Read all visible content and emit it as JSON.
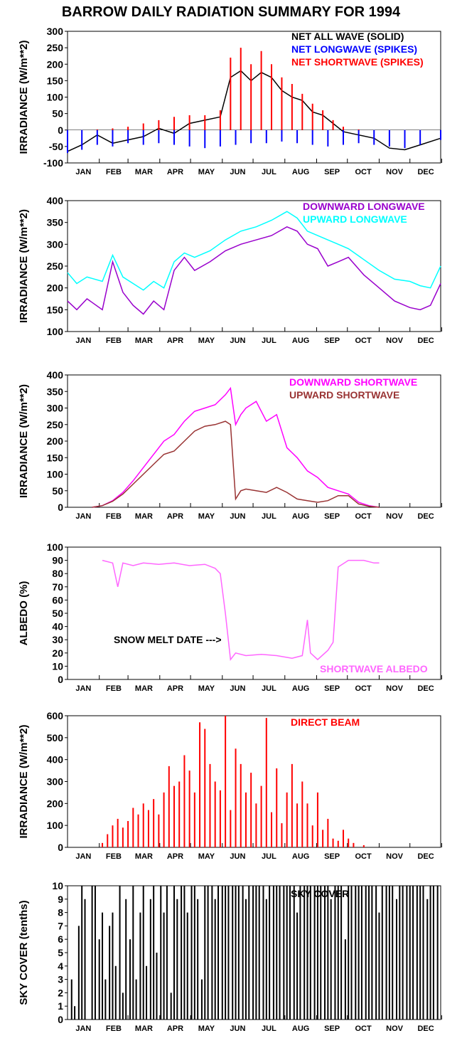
{
  "figure_title": "BARROW DAILY RADIATION SUMMARY FOR 1994",
  "months": [
    "JAN",
    "FEB",
    "MAR",
    "APR",
    "MAY",
    "JUN",
    "JUL",
    "AUG",
    "SEP",
    "OCT",
    "NOV",
    "DEC"
  ],
  "chart_data": [
    {
      "id": "net",
      "type": "bar",
      "ylabel": "IRRADIANCE (W/m**2)",
      "ylim": [
        -100,
        300
      ],
      "yticks": [
        -100,
        -50,
        0,
        50,
        100,
        150,
        200,
        250,
        300
      ],
      "series": [
        {
          "name": "NET ALL WAVE (SOLID)",
          "color": "#000000",
          "kind": "line",
          "x": [
            1,
            15,
            30,
            45,
            60,
            75,
            90,
            105,
            120,
            135,
            150,
            160,
            170,
            180,
            190,
            200,
            210,
            220,
            230,
            240,
            250,
            260,
            270,
            285,
            300,
            315,
            330,
            345,
            365
          ],
          "values": [
            -65,
            -45,
            -15,
            -40,
            -30,
            -20,
            5,
            -10,
            20,
            30,
            40,
            160,
            180,
            150,
            175,
            160,
            120,
            100,
            90,
            55,
            45,
            20,
            -5,
            -15,
            -25,
            -55,
            -60,
            -45,
            -25
          ]
        },
        {
          "name": "NET LONGWAVE (SPIKES)",
          "color": "#0000ff",
          "kind": "spikes",
          "x": [
            1,
            15,
            30,
            45,
            60,
            75,
            90,
            105,
            120,
            135,
            150,
            165,
            180,
            195,
            210,
            225,
            240,
            255,
            270,
            285,
            300,
            315,
            330,
            345,
            365
          ],
          "values": [
            -70,
            -60,
            -45,
            -50,
            -40,
            -45,
            -40,
            -45,
            -50,
            -55,
            -50,
            -45,
            -40,
            -40,
            -35,
            -40,
            -45,
            -50,
            -45,
            -40,
            -45,
            -50,
            -55,
            -45,
            -30
          ]
        },
        {
          "name": "NET SHORTWAVE (SPIKES)",
          "color": "#ff0000",
          "kind": "spikes",
          "x": [
            1,
            15,
            30,
            45,
            60,
            75,
            90,
            105,
            120,
            135,
            150,
            160,
            170,
            180,
            190,
            200,
            210,
            220,
            230,
            240,
            250,
            260,
            270,
            285,
            300,
            315,
            330,
            365
          ],
          "values": [
            0,
            0,
            2,
            5,
            10,
            20,
            30,
            40,
            45,
            45,
            60,
            220,
            250,
            200,
            240,
            200,
            160,
            140,
            110,
            80,
            60,
            30,
            10,
            2,
            0,
            0,
            0,
            0
          ]
        }
      ]
    },
    {
      "id": "longwave",
      "type": "line",
      "ylabel": "IRRADIANCE  (W/m**2)",
      "ylim": [
        100,
        400
      ],
      "yticks": [
        100,
        150,
        200,
        250,
        300,
        350,
        400
      ],
      "series": [
        {
          "name": "DOWNWARD LONGWAVE",
          "color": "#9900cc",
          "x": [
            1,
            10,
            20,
            35,
            45,
            55,
            65,
            75,
            85,
            95,
            105,
            115,
            125,
            140,
            155,
            170,
            185,
            200,
            215,
            225,
            235,
            245,
            255,
            265,
            275,
            290,
            305,
            320,
            335,
            345,
            355,
            365
          ],
          "values": [
            170,
            150,
            175,
            150,
            260,
            190,
            160,
            140,
            170,
            150,
            240,
            270,
            240,
            260,
            285,
            300,
            310,
            320,
            340,
            330,
            300,
            290,
            250,
            260,
            270,
            230,
            200,
            170,
            155,
            150,
            160,
            210
          ]
        },
        {
          "name": "UPWARD LONGWAVE",
          "color": "#00ffff",
          "x": [
            1,
            10,
            20,
            35,
            45,
            55,
            65,
            75,
            85,
            95,
            105,
            115,
            125,
            140,
            155,
            170,
            185,
            200,
            215,
            225,
            235,
            245,
            255,
            265,
            275,
            290,
            305,
            320,
            335,
            345,
            355,
            365
          ],
          "values": [
            235,
            210,
            225,
            215,
            275,
            225,
            210,
            195,
            215,
            200,
            260,
            280,
            270,
            285,
            310,
            330,
            340,
            355,
            375,
            360,
            330,
            320,
            310,
            300,
            290,
            265,
            240,
            220,
            215,
            205,
            200,
            250
          ]
        }
      ]
    },
    {
      "id": "shortwave",
      "type": "line",
      "ylabel": "IRRADIANCE (W/m**2)",
      "ylim": [
        0,
        400
      ],
      "yticks": [
        0,
        50,
        100,
        150,
        200,
        250,
        300,
        350,
        400
      ],
      "series": [
        {
          "name": "DOWNWARD SHORTWAVE",
          "color": "#ff00ff",
          "x": [
            25,
            35,
            45,
            55,
            65,
            75,
            85,
            95,
            105,
            115,
            125,
            135,
            145,
            155,
            160,
            165,
            170,
            175,
            185,
            195,
            205,
            215,
            225,
            235,
            245,
            255,
            265,
            275,
            285,
            295,
            305
          ],
          "values": [
            0,
            5,
            20,
            45,
            80,
            120,
            160,
            200,
            220,
            260,
            290,
            300,
            310,
            340,
            360,
            250,
            280,
            300,
            320,
            260,
            280,
            180,
            150,
            110,
            90,
            60,
            50,
            40,
            15,
            5,
            0
          ]
        },
        {
          "name": "UPWARD SHORTWAVE",
          "color": "#993333",
          "x": [
            25,
            35,
            45,
            55,
            65,
            75,
            85,
            95,
            105,
            115,
            125,
            135,
            145,
            155,
            160,
            165,
            170,
            175,
            185,
            195,
            205,
            215,
            225,
            235,
            245,
            255,
            265,
            275,
            285,
            295,
            305
          ],
          "values": [
            0,
            5,
            18,
            40,
            70,
            100,
            130,
            160,
            170,
            200,
            230,
            245,
            250,
            260,
            250,
            25,
            50,
            55,
            50,
            45,
            60,
            45,
            25,
            20,
            15,
            20,
            35,
            35,
            10,
            3,
            0
          ]
        }
      ]
    },
    {
      "id": "albedo",
      "type": "line",
      "ylabel": "ALBEDO (%)",
      "ylim": [
        0,
        100
      ],
      "yticks": [
        0,
        10,
        20,
        30,
        40,
        50,
        60,
        70,
        80,
        90,
        100
      ],
      "annotation": "SNOW MELT DATE  --->",
      "annotation_value": 30,
      "series": [
        {
          "name": "SHORTWAVE ALBEDO",
          "color": "#ff66ff",
          "x": [
            35,
            45,
            50,
            55,
            65,
            75,
            90,
            105,
            120,
            135,
            145,
            150,
            155,
            160,
            165,
            175,
            190,
            205,
            220,
            230,
            235,
            238,
            245,
            255,
            260,
            265,
            275,
            290,
            300,
            305
          ],
          "values": [
            90,
            88,
            70,
            88,
            86,
            88,
            87,
            88,
            86,
            87,
            84,
            80,
            50,
            15,
            20,
            18,
            19,
            18,
            16,
            18,
            45,
            20,
            15,
            22,
            28,
            85,
            90,
            90,
            88,
            88
          ]
        }
      ]
    },
    {
      "id": "direct",
      "type": "bar",
      "ylabel": "IRRADIANCE (W/m**2)",
      "ylim": [
        0,
        600
      ],
      "yticks": [
        0,
        100,
        200,
        300,
        400,
        500,
        600
      ],
      "series": [
        {
          "name": "DIRECT BEAM",
          "color": "#ff0000",
          "x": [
            35,
            40,
            45,
            50,
            55,
            60,
            65,
            70,
            75,
            80,
            85,
            90,
            95,
            100,
            105,
            110,
            115,
            120,
            125,
            130,
            135,
            140,
            145,
            150,
            155,
            160,
            165,
            170,
            175,
            180,
            185,
            190,
            195,
            200,
            205,
            210,
            215,
            220,
            225,
            230,
            235,
            240,
            245,
            250,
            255,
            260,
            265,
            270,
            275,
            280,
            290
          ],
          "values": [
            20,
            60,
            100,
            130,
            90,
            120,
            180,
            150,
            200,
            170,
            220,
            150,
            250,
            370,
            280,
            300,
            420,
            350,
            250,
            570,
            540,
            380,
            300,
            260,
            600,
            170,
            450,
            380,
            250,
            340,
            200,
            280,
            590,
            160,
            360,
            110,
            250,
            380,
            200,
            300,
            200,
            100,
            250,
            80,
            130,
            40,
            30,
            80,
            40,
            20,
            10
          ]
        }
      ]
    },
    {
      "id": "sky",
      "type": "bar",
      "ylabel": "SKY COVER (tenths)",
      "ylim": [
        0,
        10
      ],
      "yticks": [
        0,
        1,
        2,
        3,
        4,
        5,
        6,
        7,
        8,
        9,
        10
      ],
      "series": [
        {
          "name": "SKY COVER",
          "color": "#000000",
          "x": [
            5,
            8,
            12,
            15,
            18,
            22,
            25,
            28,
            32,
            35,
            38,
            42,
            45,
            48,
            52,
            55,
            58,
            62,
            65,
            68,
            72,
            75,
            78,
            82,
            85,
            88,
            92,
            95,
            98,
            102,
            105,
            108,
            112,
            115,
            118,
            122,
            125,
            128,
            132,
            135,
            138,
            142,
            145,
            148,
            152,
            155,
            158,
            162,
            165,
            168,
            172,
            175,
            178,
            182,
            185,
            188,
            192,
            195,
            198,
            202,
            205,
            208,
            212,
            215,
            218,
            222,
            225,
            228,
            232,
            235,
            238,
            242,
            245,
            248,
            252,
            255,
            258,
            262,
            265,
            268,
            272,
            275,
            278,
            282,
            285,
            288,
            292,
            295,
            298,
            302,
            305,
            308,
            312,
            315,
            318,
            322,
            325,
            328,
            332,
            335,
            338,
            342,
            345,
            348,
            352,
            355,
            358,
            362
          ],
          "values": [
            3,
            1,
            7,
            10,
            9,
            0,
            10,
            10,
            6,
            8,
            3,
            7,
            8,
            4,
            10,
            2,
            9,
            6,
            10,
            3,
            8,
            10,
            4,
            9,
            10,
            5,
            10,
            8,
            10,
            2,
            10,
            9,
            10,
            10,
            8,
            10,
            10,
            9,
            3,
            10,
            10,
            10,
            9,
            10,
            10,
            10,
            10,
            10,
            10,
            10,
            10,
            9,
            10,
            10,
            10,
            10,
            10,
            9,
            10,
            10,
            10,
            10,
            10,
            10,
            10,
            10,
            8,
            10,
            10,
            10,
            10,
            10,
            10,
            10,
            10,
            10,
            9,
            10,
            10,
            10,
            6,
            10,
            10,
            10,
            10,
            10,
            10,
            10,
            10,
            10,
            8,
            10,
            10,
            10,
            10,
            9,
            10,
            10,
            10,
            10,
            10,
            10,
            10,
            10,
            9,
            10,
            10,
            10
          ]
        }
      ]
    }
  ]
}
